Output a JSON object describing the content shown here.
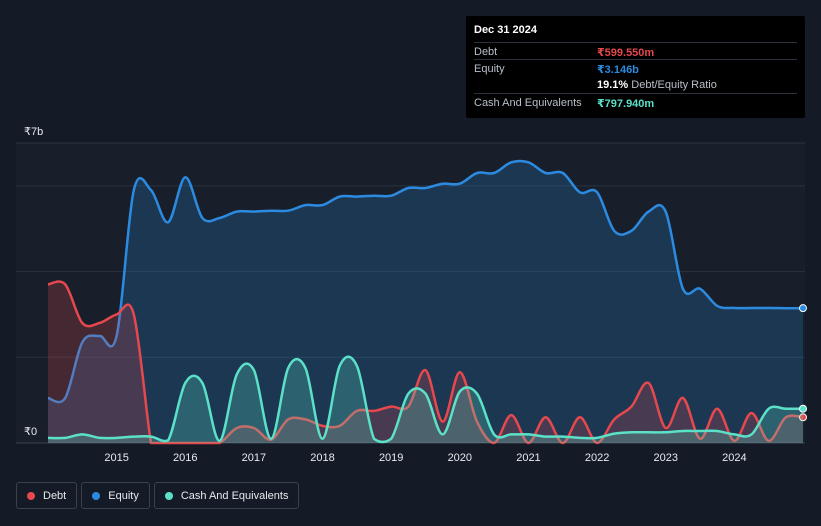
{
  "tooltip": {
    "date": "Dec 31 2024",
    "rows": [
      {
        "key": "Debt",
        "value": "₹599.550m",
        "color": "#e5484d"
      },
      {
        "key": "Equity",
        "value": "₹3.146b",
        "color": "#2c8be0"
      },
      {
        "key": "",
        "value": "19.1%",
        "sub": "Debt/Equity Ratio",
        "color": "#ffffff"
      },
      {
        "key": "Cash And Equivalents",
        "value": "₹797.940m",
        "color": "#5ce1c9"
      }
    ]
  },
  "legend": [
    {
      "label": "Debt",
      "color": "#e5484d"
    },
    {
      "label": "Equity",
      "color": "#2c8be0"
    },
    {
      "label": "Cash And Equivalents",
      "color": "#5ce1c9"
    }
  ],
  "chart_data": {
    "type": "area",
    "ylabel_top": "₹7b",
    "ylabel_bottom": "₹0",
    "ylim": [
      0,
      7
    ],
    "xlim": [
      2014.0,
      2025.0
    ],
    "x_ticks": [
      "2015",
      "2016",
      "2017",
      "2018",
      "2019",
      "2020",
      "2021",
      "2022",
      "2023",
      "2024"
    ],
    "x_tick_values": [
      2015,
      2016,
      2017,
      2018,
      2019,
      2020,
      2021,
      2022,
      2023,
      2024
    ],
    "grid": true,
    "legend_position": "bottom-left",
    "series": [
      {
        "name": "Debt",
        "color": "#e5484d",
        "x": [
          2014.0,
          2014.25,
          2014.5,
          2014.75,
          2015.0,
          2015.25,
          2015.5,
          2015.6,
          2015.75,
          2016.0,
          2016.25,
          2016.5,
          2016.75,
          2017.0,
          2017.25,
          2017.5,
          2017.75,
          2018.0,
          2018.25,
          2018.5,
          2018.75,
          2019.0,
          2019.25,
          2019.5,
          2019.75,
          2020.0,
          2020.25,
          2020.5,
          2020.75,
          2021.0,
          2021.25,
          2021.5,
          2021.75,
          2022.0,
          2022.25,
          2022.5,
          2022.75,
          2023.0,
          2023.25,
          2023.5,
          2023.75,
          2024.0,
          2024.25,
          2024.5,
          2024.75,
          2025.0
        ],
        "values": [
          3.7,
          3.7,
          2.8,
          2.8,
          3.0,
          3.0,
          0.0,
          0.0,
          0.0,
          0.0,
          0.0,
          0.0,
          0.35,
          0.35,
          0.08,
          0.55,
          0.55,
          0.4,
          0.4,
          0.75,
          0.75,
          0.85,
          0.85,
          1.7,
          0.5,
          1.65,
          0.5,
          0.0,
          0.65,
          0.0,
          0.6,
          0.0,
          0.6,
          0.0,
          0.55,
          0.85,
          1.4,
          0.35,
          1.05,
          0.1,
          0.8,
          0.05,
          0.7,
          0.05,
          0.6,
          0.6
        ]
      },
      {
        "name": "Equity",
        "color": "#2c8be0",
        "x": [
          2014.0,
          2014.25,
          2014.5,
          2014.75,
          2015.0,
          2015.25,
          2015.5,
          2015.75,
          2016.0,
          2016.25,
          2016.5,
          2016.75,
          2017.0,
          2017.25,
          2017.5,
          2017.75,
          2018.0,
          2018.25,
          2018.5,
          2018.75,
          2019.0,
          2019.25,
          2019.5,
          2019.75,
          2020.0,
          2020.25,
          2020.5,
          2020.75,
          2021.0,
          2021.25,
          2021.5,
          2021.75,
          2022.0,
          2022.25,
          2022.5,
          2022.75,
          2023.0,
          2023.25,
          2023.5,
          2023.75,
          2024.0,
          2024.25,
          2024.5,
          2024.75,
          2025.0
        ],
        "values": [
          1.05,
          1.05,
          2.35,
          2.5,
          2.5,
          5.9,
          5.9,
          5.15,
          6.2,
          5.25,
          5.25,
          5.4,
          5.4,
          5.42,
          5.42,
          5.55,
          5.55,
          5.75,
          5.75,
          5.77,
          5.77,
          5.95,
          5.95,
          6.05,
          6.05,
          6.3,
          6.3,
          6.55,
          6.55,
          6.3,
          6.3,
          5.85,
          5.85,
          4.95,
          4.95,
          5.4,
          5.4,
          3.6,
          3.6,
          3.2,
          3.15,
          3.15,
          3.15,
          3.146,
          3.146
        ]
      },
      {
        "name": "Cash And Equivalents",
        "color": "#5ce1c9",
        "x": [
          2014.0,
          2014.25,
          2014.5,
          2014.75,
          2015.0,
          2015.25,
          2015.5,
          2015.75,
          2016.0,
          2016.25,
          2016.5,
          2016.75,
          2017.0,
          2017.25,
          2017.5,
          2017.75,
          2018.0,
          2018.25,
          2018.5,
          2018.75,
          2019.0,
          2019.25,
          2019.5,
          2019.75,
          2020.0,
          2020.25,
          2020.5,
          2020.75,
          2021.0,
          2021.25,
          2021.5,
          2021.75,
          2022.0,
          2022.25,
          2022.5,
          2022.75,
          2023.0,
          2023.25,
          2023.5,
          2023.75,
          2024.0,
          2024.25,
          2024.5,
          2024.75,
          2025.0
        ],
        "values": [
          0.12,
          0.12,
          0.2,
          0.12,
          0.12,
          0.15,
          0.15,
          0.06,
          1.4,
          1.4,
          0.05,
          1.6,
          1.7,
          0.1,
          1.75,
          1.75,
          0.1,
          1.8,
          1.8,
          0.1,
          0.1,
          1.15,
          1.15,
          0.2,
          1.2,
          1.15,
          0.2,
          0.2,
          0.2,
          0.15,
          0.15,
          0.12,
          0.12,
          0.22,
          0.25,
          0.25,
          0.25,
          0.28,
          0.28,
          0.28,
          0.2,
          0.2,
          0.8,
          0.8,
          0.8
        ]
      }
    ]
  }
}
